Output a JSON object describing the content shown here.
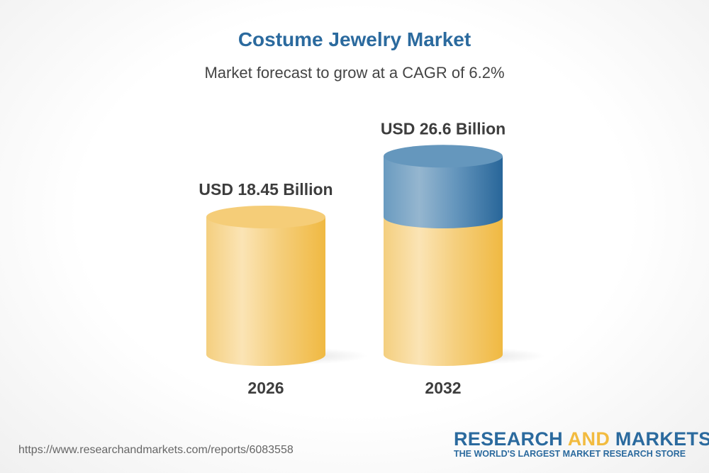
{
  "chart_data": {
    "type": "bar",
    "title": "Costume Jewelry Market",
    "subtitle": "Market forecast to grow at a CAGR of 6.2%",
    "categories": [
      "2026",
      "2032"
    ],
    "values": [
      18.45,
      26.6
    ],
    "data_labels": [
      "USD 18.45 Billion",
      "USD 26.6 Billion"
    ],
    "unit": "USD Billion",
    "style": "3d-cylinder",
    "colors": {
      "base": "#f2bb3f",
      "growth": "#2b6a9e"
    }
  },
  "footer": {
    "url": "https://www.researchandmarkets.com/reports/6083558",
    "logo": {
      "word1": "RESEARCH ",
      "word2": "AND",
      "word3": " MARKETS",
      "tagline": "THE WORLD'S LARGEST MARKET RESEARCH STORE"
    }
  }
}
